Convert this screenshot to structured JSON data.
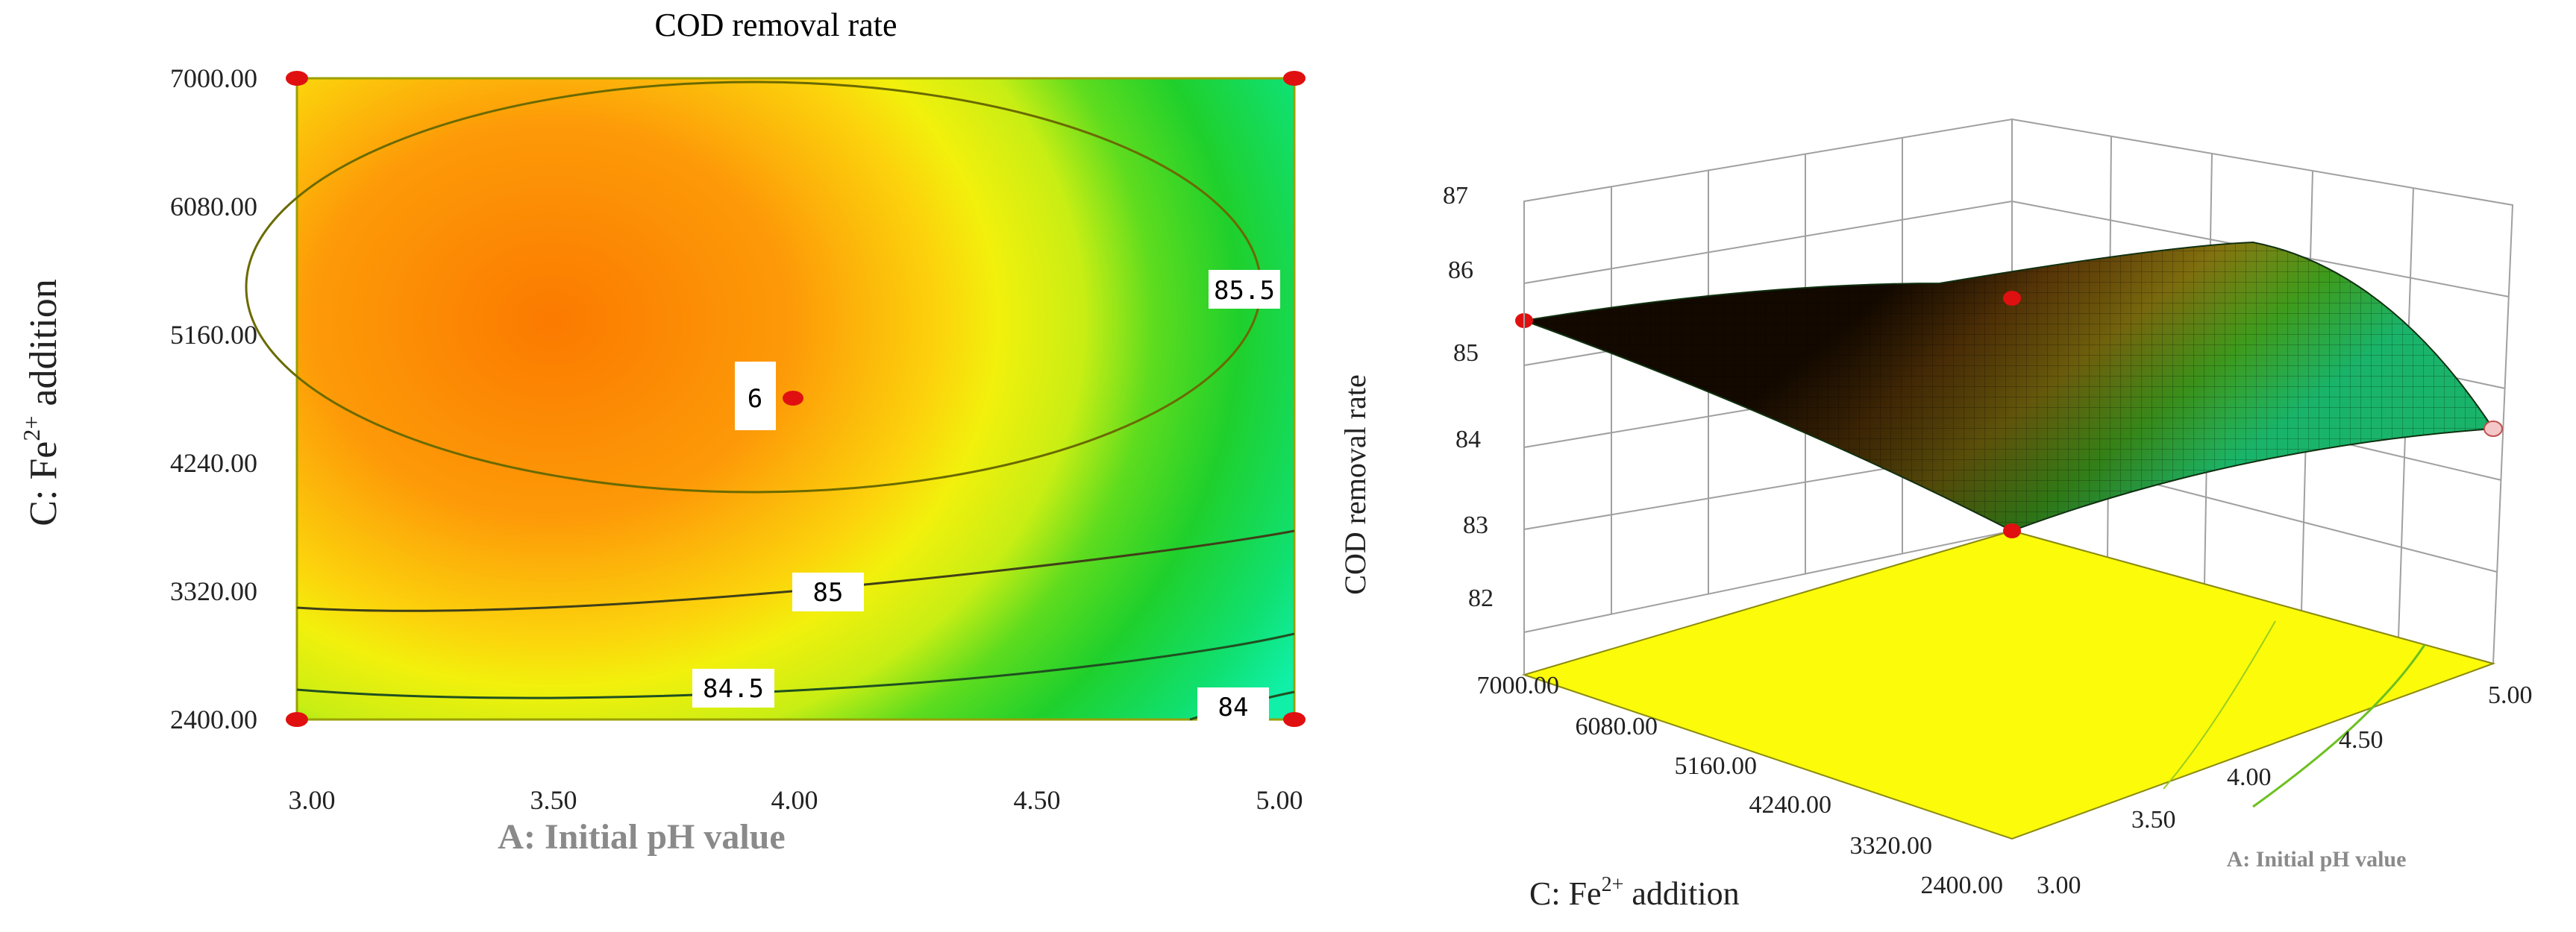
{
  "chart_data": [
    {
      "type": "contour",
      "title": "COD removal rate",
      "xlabel": "A: Initial pH value",
      "ylabel_main": "C: Fe",
      "ylabel_sup": "2+",
      "ylabel_rest": " addition",
      "x_ticks": [
        "3.00",
        "3.50",
        "4.00",
        "4.50",
        "5.00"
      ],
      "y_ticks": [
        "2400.00",
        "3320.00",
        "4240.00",
        "5160.00",
        "6080.00",
        "7000.00"
      ],
      "xlim": [
        3.0,
        5.0
      ],
      "ylim": [
        2400,
        7000
      ],
      "contour_labels": [
        "85.5",
        "85",
        "84.5",
        "84"
      ],
      "center_point": {
        "x": 4.0,
        "y": 4700,
        "label": "6"
      },
      "design_points": [
        {
          "x": 3.0,
          "y": 7000
        },
        {
          "x": 5.0,
          "y": 7000
        },
        {
          "x": 3.0,
          "y": 2400
        },
        {
          "x": 5.0,
          "y": 2400
        }
      ]
    },
    {
      "type": "surface3d",
      "zlabel": "COD removal rate",
      "xlabel": "A: Initial pH value",
      "ylabel_main": "C: Fe",
      "ylabel_sup": "2+",
      "ylabel_rest": " addition",
      "z_ticks": [
        "82",
        "83",
        "84",
        "85",
        "86",
        "87"
      ],
      "zlim": [
        82,
        87
      ],
      "x_ticks": [
        "3.00",
        "3.50",
        "4.00",
        "4.50",
        "5.00"
      ],
      "y_ticks": [
        "7000.00",
        "6080.00",
        "5160.00",
        "4240.00",
        "3320.00",
        "2400.00"
      ]
    }
  ]
}
